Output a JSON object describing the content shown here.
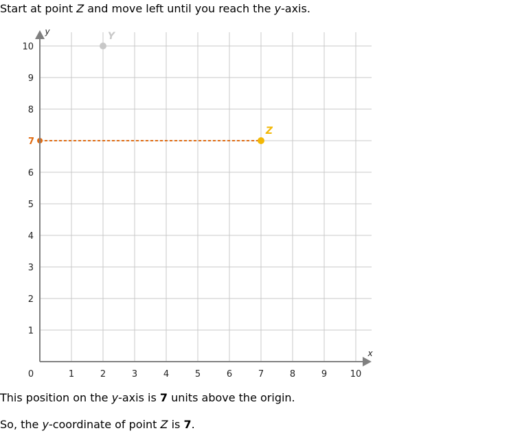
{
  "instruction": {
    "prefix": "Start at point ",
    "point": "Z",
    "middle": " and move left until you reach the ",
    "axis_var": "y",
    "suffix": "-axis."
  },
  "explanation": {
    "prefix": "This position on the ",
    "axis_var": "y",
    "middle": "-axis is ",
    "value": "7",
    "suffix": " units above the origin."
  },
  "conclusion": {
    "prefix": "So, the ",
    "axis_var": "y",
    "middle": "-coordinate of point ",
    "point": "Z",
    "is": " is ",
    "value": "7",
    "end": "."
  },
  "graph": {
    "x_axis_label": "x",
    "y_axis_label": "y",
    "x_range": [
      0,
      10
    ],
    "y_range": [
      0,
      10
    ],
    "x_ticks": [
      "0",
      "1",
      "2",
      "3",
      "4",
      "5",
      "6",
      "7",
      "8",
      "9",
      "10"
    ],
    "y_ticks": [
      "1",
      "2",
      "3",
      "4",
      "5",
      "6",
      "7",
      "8",
      "9",
      "10"
    ],
    "points": [
      {
        "label": "Y",
        "x": 2,
        "y": 10,
        "color": "#c8c8c8"
      },
      {
        "label": "Z",
        "x": 7,
        "y": 7,
        "color": "#f2b705"
      }
    ],
    "highlight": {
      "y_value": "7",
      "color": "#e06a10"
    },
    "grid_color": "#c8c8c8",
    "axis_color": "#808080"
  }
}
